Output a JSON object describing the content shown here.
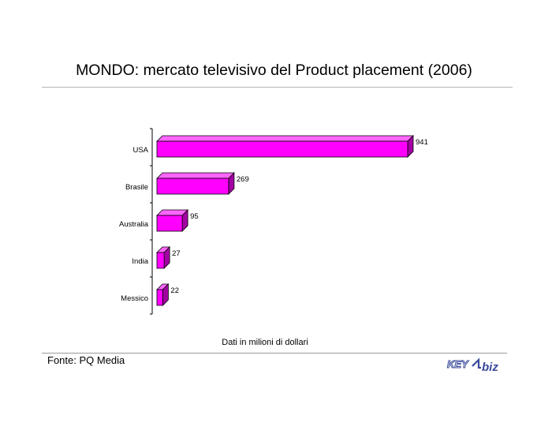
{
  "title": "MONDO: mercato televisivo del Product placement (2006)",
  "note": "Dati in milioni di dollari",
  "source": "Fonte: PQ Media",
  "logo": {
    "part1": "KEY",
    "part2": "biz"
  },
  "colors": {
    "bar_front": "#ff00ff",
    "bar_top": "#ff66ff",
    "bar_side": "#a300a3",
    "logo_blue": "#3a4a9a"
  },
  "chart_data": {
    "type": "bar",
    "orientation": "horizontal",
    "style": "3d",
    "categories": [
      "USA",
      "Brasile",
      "Australia",
      "India",
      "Messico"
    ],
    "values": [
      941,
      269,
      95,
      27,
      22
    ],
    "xlim": [
      0,
      941
    ],
    "grid": false,
    "legend": "none"
  }
}
